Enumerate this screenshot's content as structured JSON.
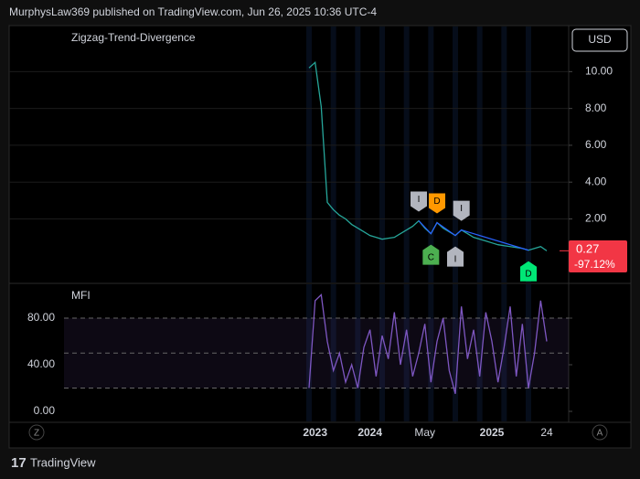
{
  "header": "MurphysLaw369 published on TradingView.com, Jun 26, 2025 10:36 UTC-4",
  "currency": "USD",
  "footer": "TradingView",
  "scale_buttons": [
    "Z",
    "A"
  ],
  "chart_data": [
    {
      "type": "line",
      "title": "Zigzag-Trend-Divergence",
      "color": "#26a69a",
      "values": [
        10.2,
        10.5,
        8.1,
        2.9,
        2.5,
        2.2,
        2.0,
        1.7,
        1.5,
        1.3,
        1.1,
        1.0,
        0.9,
        0.95,
        1.0,
        1.2,
        1.4,
        1.6,
        1.9,
        1.5,
        1.2,
        1.8,
        1.5,
        1.3,
        1.1,
        1.4,
        1.2,
        1.0,
        0.9,
        0.8,
        0.7,
        0.6,
        0.55,
        0.5,
        0.45,
        0.4,
        0.3,
        0.4,
        0.5,
        0.27
      ],
      "last_value_label": "0.27",
      "change_label": "-97.12%",
      "last_color": "#f23645",
      "ylim": [
        -1.5,
        12.5
      ],
      "yticks": [
        {
          "value": 2,
          "label": "2.00"
        },
        {
          "value": 4,
          "label": "4.00"
        },
        {
          "value": 6,
          "label": "6.00"
        },
        {
          "value": 8,
          "label": "8.00"
        },
        {
          "value": 10,
          "label": "10.00"
        }
      ],
      "grid": true,
      "zigzag_color": "#2962ff",
      "annotations": [
        {
          "label": "I",
          "index": 18,
          "position": "above",
          "color": "#b2b5be"
        },
        {
          "label": "C",
          "index": 20,
          "position": "below",
          "color": "#4caf50"
        },
        {
          "label": "D",
          "index": 21,
          "position": "above",
          "color": "#ff9800"
        },
        {
          "label": "I",
          "index": 24,
          "position": "below",
          "color": "#b2b5be"
        },
        {
          "label": "I",
          "index": 25,
          "position": "above",
          "color": "#b2b5be"
        },
        {
          "label": "D",
          "index": 36,
          "position": "below",
          "color": "#00e676"
        }
      ]
    },
    {
      "type": "line",
      "title": "MFI",
      "color": "#7e57c2",
      "categories": [
        null,
        "2023",
        null,
        null,
        null,
        null,
        null,
        null,
        null,
        null,
        "2024",
        null,
        null,
        null,
        null,
        null,
        null,
        null,
        null,
        "May",
        null,
        null,
        null,
        null,
        null,
        null,
        null,
        null,
        null,
        null,
        "2025",
        null,
        null,
        null,
        null,
        null,
        null,
        null,
        null,
        "24"
      ],
      "values": [
        20,
        95,
        100,
        60,
        35,
        50,
        25,
        40,
        20,
        55,
        70,
        30,
        65,
        45,
        85,
        40,
        70,
        30,
        50,
        75,
        25,
        60,
        80,
        35,
        15,
        90,
        45,
        70,
        30,
        85,
        60,
        25,
        55,
        90,
        30,
        75,
        20,
        50,
        95,
        60
      ],
      "ylim": [
        -9.4,
        109.8
      ],
      "yticks": [
        {
          "value": 0,
          "label": "0.00"
        },
        {
          "value": 40,
          "label": "40.00"
        },
        {
          "value": 80,
          "label": "80.00"
        }
      ],
      "levels": [
        20,
        50,
        80
      ]
    }
  ]
}
